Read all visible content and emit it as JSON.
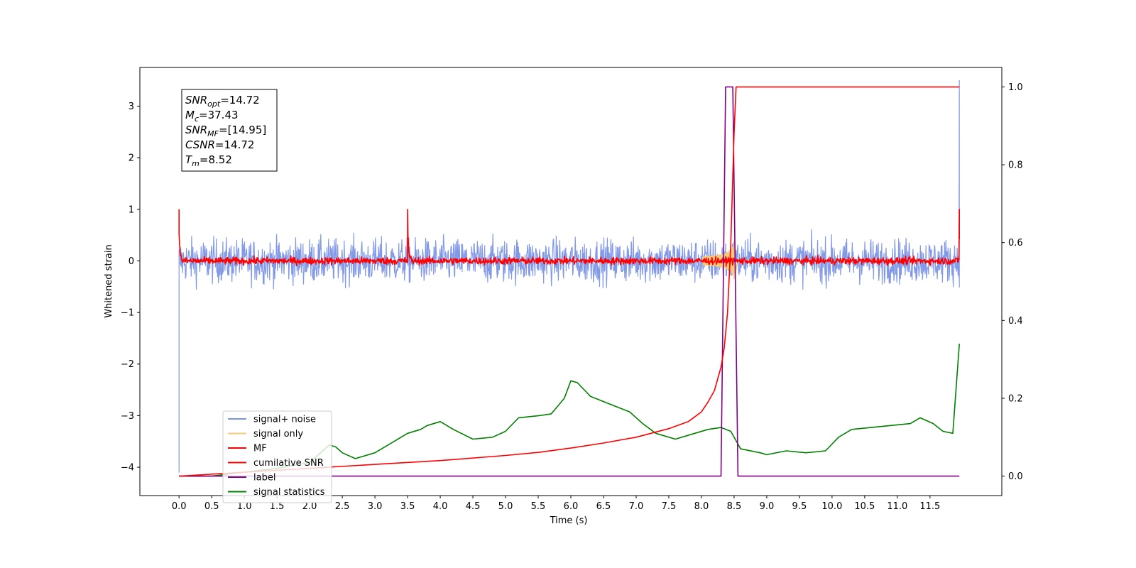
{
  "chart_data": {
    "type": "line",
    "title": "",
    "xlabel": "Time (s)",
    "ylabel": "Whitened strain",
    "y2label": "",
    "xlim": [
      -0.6,
      12.6
    ],
    "ylim": [
      -4.55,
      3.75
    ],
    "y2lim": [
      -0.05,
      1.05
    ],
    "grid": false,
    "legend_position": "lower-left",
    "x_ticks": [
      "0.0",
      "0.5",
      "1.0",
      "1.5",
      "2.0",
      "2.5",
      "3.0",
      "3.5",
      "4.0",
      "4.5",
      "5.0",
      "5.5",
      "6.0",
      "6.5",
      "7.0",
      "7.5",
      "8.0",
      "8.5",
      "9.0",
      "9.5",
      "10.0",
      "10.5",
      "11.0",
      "11.5"
    ],
    "y_ticks": [
      "−4",
      "−3",
      "−2",
      "−1",
      "0",
      "1",
      "2",
      "3"
    ],
    "y2_ticks": [
      "0.0",
      "0.2",
      "0.4",
      "0.6",
      "0.8",
      "1.0"
    ],
    "info_box": [
      {
        "sym": "SNR",
        "sub": "opt",
        "rest": "=14.72"
      },
      {
        "sym": "M",
        "sub": "c",
        "rest": "=37.43"
      },
      {
        "sym": "SNR",
        "sub": "MF",
        "rest": "=[14.95]"
      },
      {
        "sym": "CSNR",
        "sub": "",
        "rest": "=14.72"
      },
      {
        "sym": "T",
        "sub": "m",
        "rest": "=8.52"
      }
    ],
    "series": [
      {
        "name": "signal+ noise",
        "color": "#7b94e6",
        "axis": "left",
        "kind": "noise",
        "amplitude": 0.3,
        "spikes": [
          [
            0.0,
            -4.1
          ],
          [
            0.0,
            -0.9
          ],
          [
            11.95,
            3.5
          ]
        ]
      },
      {
        "name": "signal only",
        "color": "#f5c97a",
        "axis": "left",
        "kind": "chirp",
        "merger_time": 8.52,
        "peak": 0.4
      },
      {
        "name": "MF",
        "color": "#ff0000",
        "axis": "left",
        "kind": "noise",
        "amplitude": 0.05,
        "spikes": [
          [
            0.0,
            1.0
          ],
          [
            3.5,
            1.0
          ],
          [
            11.95,
            1.0
          ]
        ]
      },
      {
        "name": "cumilative SNR",
        "color": "#ff0000",
        "axis": "right",
        "kind": "line",
        "x": [
          0.0,
          1.0,
          2.0,
          3.0,
          4.0,
          5.0,
          5.5,
          6.0,
          6.5,
          7.0,
          7.5,
          7.8,
          8.0,
          8.1,
          8.2,
          8.3,
          8.35,
          8.4,
          8.45,
          8.5,
          8.53,
          8.55,
          11.95
        ],
        "y": [
          0.0,
          0.01,
          0.02,
          0.03,
          0.04,
          0.053,
          0.061,
          0.072,
          0.085,
          0.1,
          0.122,
          0.14,
          0.165,
          0.19,
          0.22,
          0.28,
          0.33,
          0.42,
          0.6,
          0.88,
          1.0,
          1.0,
          1.0
        ]
      },
      {
        "name": "label",
        "color": "#800080",
        "axis": "right",
        "kind": "line",
        "x": [
          0.0,
          8.3,
          8.37,
          8.48,
          8.56,
          11.95
        ],
        "y": [
          0.0,
          0.0,
          1.0,
          1.0,
          0.0,
          0.0
        ]
      },
      {
        "name": "signal statistics",
        "color": "#008000",
        "axis": "right",
        "kind": "line",
        "x": [
          0.0,
          0.5,
          1.0,
          1.5,
          2.0,
          2.2,
          2.3,
          2.4,
          2.5,
          2.7,
          3.0,
          3.3,
          3.5,
          3.7,
          3.8,
          4.0,
          4.2,
          4.5,
          4.8,
          5.0,
          5.2,
          5.5,
          5.7,
          5.9,
          6.0,
          6.1,
          6.3,
          6.6,
          6.9,
          7.1,
          7.3,
          7.6,
          7.9,
          8.1,
          8.3,
          8.45,
          8.6,
          8.9,
          9.0,
          9.3,
          9.6,
          9.9,
          10.1,
          10.3,
          10.6,
          10.9,
          11.2,
          11.35,
          11.55,
          11.7,
          11.85,
          11.95
        ],
        "y": [
          0.0,
          0.0,
          0.01,
          0.02,
          0.035,
          0.065,
          0.08,
          0.075,
          0.06,
          0.045,
          0.06,
          0.09,
          0.11,
          0.12,
          0.13,
          0.14,
          0.12,
          0.095,
          0.1,
          0.115,
          0.15,
          0.155,
          0.16,
          0.2,
          0.245,
          0.24,
          0.205,
          0.185,
          0.165,
          0.135,
          0.11,
          0.095,
          0.11,
          0.12,
          0.125,
          0.115,
          0.07,
          0.06,
          0.055,
          0.065,
          0.06,
          0.065,
          0.1,
          0.12,
          0.125,
          0.13,
          0.135,
          0.15,
          0.135,
          0.115,
          0.11,
          0.34
        ]
      }
    ]
  }
}
